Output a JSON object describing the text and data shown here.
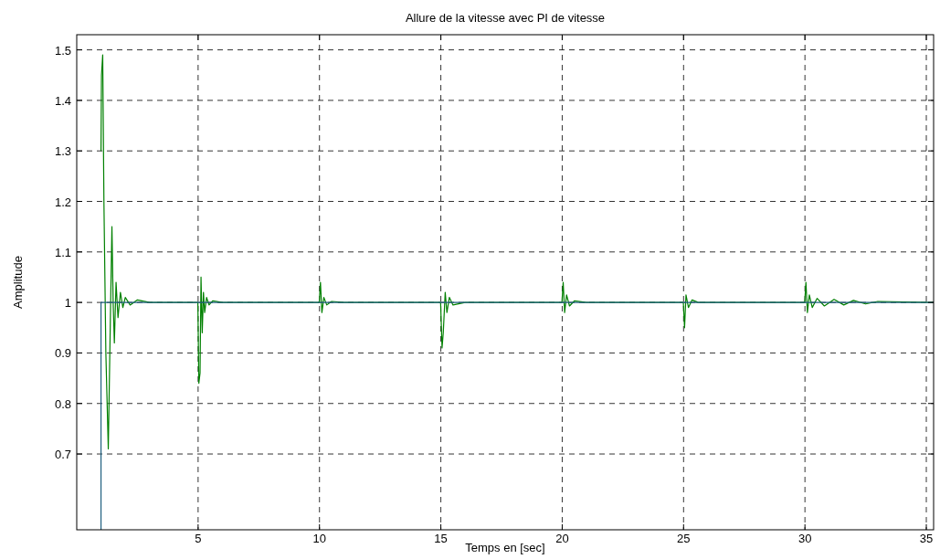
{
  "chart_data": {
    "type": "line",
    "title": "Allure de la vitesse avec PI de vitesse",
    "xlabel": "Temps en [sec]",
    "ylabel": "Amplitude",
    "xlim": [
      0,
      35.3
    ],
    "ylim": [
      0.55,
      1.53
    ],
    "xticks": [
      5,
      10,
      15,
      20,
      25,
      30,
      35
    ],
    "yticks": [
      0.7,
      0.8,
      0.9,
      1,
      1.1,
      1.2,
      1.3,
      1.4,
      1.5
    ],
    "grid": true,
    "line_style": "solid",
    "marker": "none",
    "series": [
      {
        "color": "#008000",
        "x": [
          1,
          1.02,
          1.07,
          1.12,
          1.2,
          1.3,
          1.38,
          1.45,
          1.5,
          1.55,
          1.62,
          1.7,
          1.8,
          1.9,
          2.0,
          2.2,
          2.5,
          3.0,
          4.99,
          5.03,
          5.08,
          5.12,
          5.17,
          5.22,
          5.27,
          5.35,
          5.45,
          5.6,
          6.0,
          9.99,
          10.04,
          10.1,
          10.18,
          10.3,
          10.5,
          11.0,
          14.99,
          15.05,
          15.1,
          15.18,
          15.25,
          15.35,
          15.5,
          16.0,
          19.99,
          20.04,
          20.1,
          20.18,
          20.3,
          20.5,
          21.0,
          24.99,
          25.04,
          25.1,
          25.2,
          25.35,
          25.6,
          29.99,
          30.04,
          30.1,
          30.18,
          30.3,
          30.5,
          30.8,
          31.2,
          31.6,
          32.0,
          32.5,
          33.0,
          35.3
        ],
        "values": [
          1.3,
          1.45,
          1.49,
          1.2,
          0.9,
          0.71,
          0.95,
          1.15,
          1.0,
          0.92,
          1.04,
          0.97,
          1.02,
          0.99,
          1.01,
          0.995,
          1.005,
          1,
          1,
          0.84,
          0.86,
          1.05,
          0.94,
          1.02,
          0.98,
          1.01,
          0.995,
          1.003,
          1,
          1,
          1.04,
          0.98,
          1.01,
          0.995,
          1.002,
          1,
          1,
          0.91,
          0.94,
          1.02,
          0.98,
          1.01,
          0.995,
          1,
          1,
          1.04,
          0.98,
          1.015,
          0.993,
          1.003,
          1,
          1,
          0.95,
          1.015,
          0.99,
          1.005,
          1,
          1,
          1.04,
          0.98,
          1.015,
          0.99,
          1.008,
          0.993,
          1.006,
          0.995,
          1.004,
          0.997,
          1.002,
          1
        ]
      },
      {
        "color": "#1f5f7f",
        "x": [
          1,
          1,
          35.3
        ],
        "values": [
          0.55,
          1,
          1
        ]
      }
    ]
  }
}
